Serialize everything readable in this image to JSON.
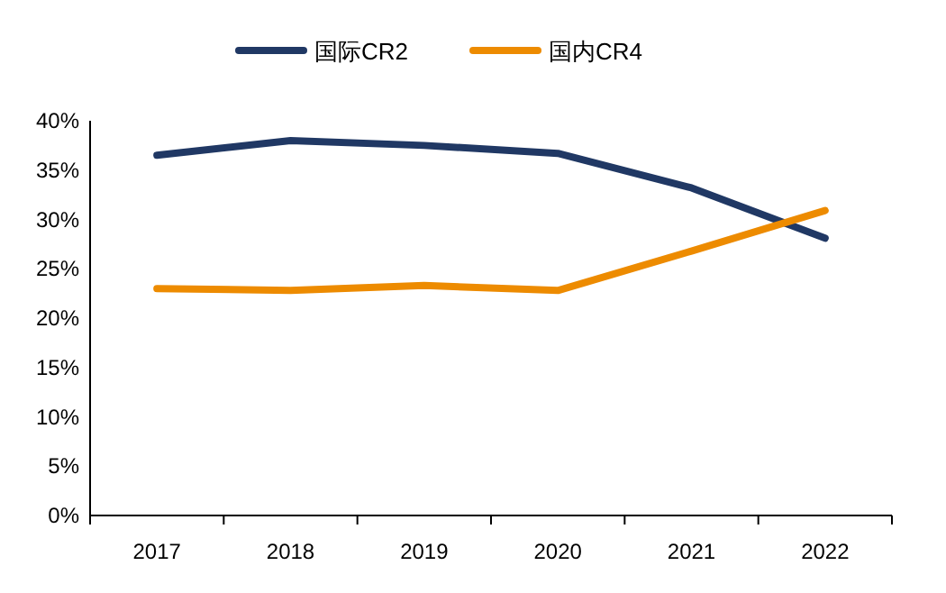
{
  "chart_data": {
    "type": "line",
    "categories": [
      "2017",
      "2018",
      "2019",
      "2020",
      "2021",
      "2022"
    ],
    "series": [
      {
        "name": "国际CR2",
        "color": "#203864",
        "values": [
          36.5,
          38.0,
          37.5,
          36.7,
          33.2,
          28.1
        ]
      },
      {
        "name": "国内CR4",
        "color": "#ed8b00",
        "values": [
          23.0,
          22.8,
          23.3,
          22.8,
          26.8,
          30.9
        ]
      }
    ],
    "ylim": [
      0,
      40
    ],
    "yticks": [
      {
        "value": 0,
        "label": "0%"
      },
      {
        "value": 5,
        "label": "5%"
      },
      {
        "value": 10,
        "label": "10%"
      },
      {
        "value": 15,
        "label": "15%"
      },
      {
        "value": 20,
        "label": "20%"
      },
      {
        "value": 25,
        "label": "25%"
      },
      {
        "value": 30,
        "label": "30%"
      },
      {
        "value": 35,
        "label": "35%"
      },
      {
        "value": 40,
        "label": "40%"
      }
    ],
    "legend": "top",
    "grid": false,
    "marker": "none",
    "line_style": "solid"
  }
}
